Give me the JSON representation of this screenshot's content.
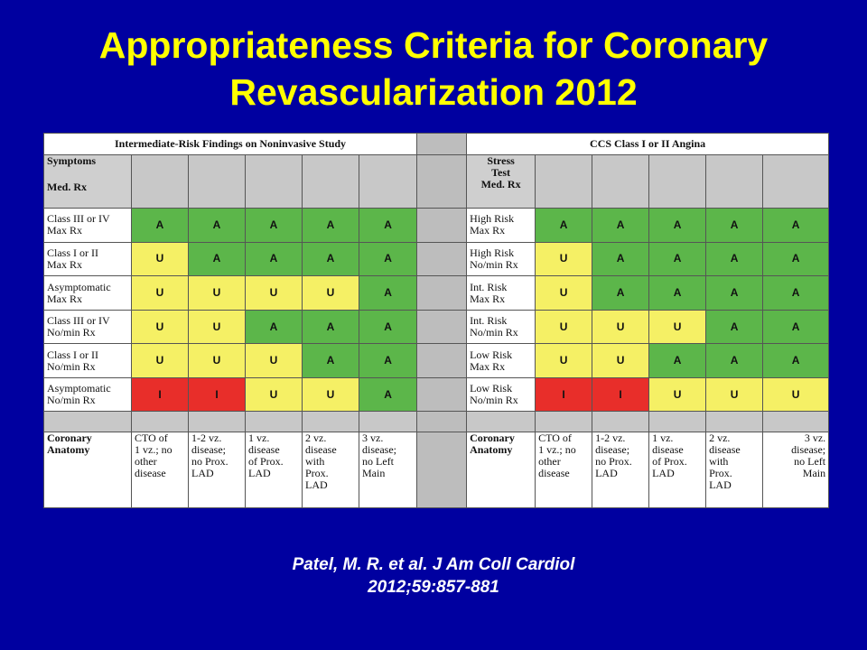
{
  "slide": {
    "title_line1": "Appropriateness Criteria for Coronary",
    "title_line2": "Revascularization 2012",
    "citation_line1": "Patel, M. R. et al. J Am Coll Cardiol",
    "citation_line2": "2012;59:857-881"
  },
  "colors": {
    "A": "#5cb64a",
    "U": "#f5f065",
    "I": "#e82e2a",
    "background": "#0000a0",
    "title": "#ffff00"
  },
  "left": {
    "header": "Intermediate-Risk Findings on Noninvasive Study",
    "corner_line1": "Symptoms",
    "corner_line2": "Med. Rx",
    "rows": [
      {
        "l1": "Class III or IV",
        "l2": "Max Rx",
        "r": [
          "A",
          "A",
          "A",
          "A",
          "A"
        ]
      },
      {
        "l1": "Class I or II",
        "l2": "Max Rx",
        "r": [
          "U",
          "A",
          "A",
          "A",
          "A"
        ]
      },
      {
        "l1": "Asymptomatic",
        "l2": "Max Rx",
        "r": [
          "U",
          "U",
          "U",
          "U",
          "A"
        ]
      },
      {
        "l1": "Class III or IV",
        "l2": "No/min Rx",
        "r": [
          "U",
          "U",
          "A",
          "A",
          "A"
        ]
      },
      {
        "l1": "Class I or II",
        "l2": "No/min Rx",
        "r": [
          "U",
          "U",
          "U",
          "A",
          "A"
        ]
      },
      {
        "l1": "Asymptomatic",
        "l2": "No/min Rx",
        "r": [
          "I",
          "I",
          "U",
          "U",
          "A"
        ]
      }
    ],
    "anatomy_label_l1": "Coronary",
    "anatomy_label_l2": "Anatomy",
    "anatomy": [
      [
        "CTO of",
        "1 vz.; no",
        "other",
        "disease"
      ],
      [
        "1-2 vz.",
        "disease;",
        "no Prox.",
        "LAD"
      ],
      [
        "1 vz.",
        "disease",
        "of Prox.",
        "LAD"
      ],
      [
        "2 vz.",
        "disease",
        "with",
        "Prox.",
        "LAD"
      ],
      [
        "3 vz.",
        "disease;",
        "no Left",
        "Main"
      ]
    ]
  },
  "right": {
    "header": "CCS Class I or II Angina",
    "corner_line1": "Stress",
    "corner_line2": "Test",
    "corner_line3": "Med. Rx",
    "rows": [
      {
        "l1": "High Risk",
        "l2": "Max Rx",
        "r": [
          "A",
          "A",
          "A",
          "A",
          "A"
        ]
      },
      {
        "l1": "High Risk",
        "l2": "No/min Rx",
        "r": [
          "U",
          "A",
          "A",
          "A",
          "A"
        ]
      },
      {
        "l1": "Int. Risk",
        "l2": "Max Rx",
        "r": [
          "U",
          "A",
          "A",
          "A",
          "A"
        ]
      },
      {
        "l1": "Int. Risk",
        "l2": "No/min Rx",
        "r": [
          "U",
          "U",
          "U",
          "A",
          "A"
        ]
      },
      {
        "l1": "Low Risk",
        "l2": "Max Rx",
        "r": [
          "U",
          "U",
          "A",
          "A",
          "A"
        ]
      },
      {
        "l1": "Low Risk",
        "l2": "No/min Rx",
        "r": [
          "I",
          "I",
          "U",
          "U",
          "U"
        ]
      }
    ],
    "anatomy_label_l1": "Coronary",
    "anatomy_label_l2": "Anatomy",
    "anatomy": [
      [
        "CTO of",
        "1 vz.; no",
        "other",
        "disease"
      ],
      [
        "1-2 vz.",
        "disease;",
        "no Prox.",
        "LAD"
      ],
      [
        "1 vz.",
        "disease",
        "of Prox.",
        "LAD"
      ],
      [
        "2 vz.",
        "disease",
        "with",
        "Prox.",
        "LAD"
      ],
      [
        "3 vz.",
        "disease;",
        "no Left",
        "Main"
      ]
    ]
  }
}
